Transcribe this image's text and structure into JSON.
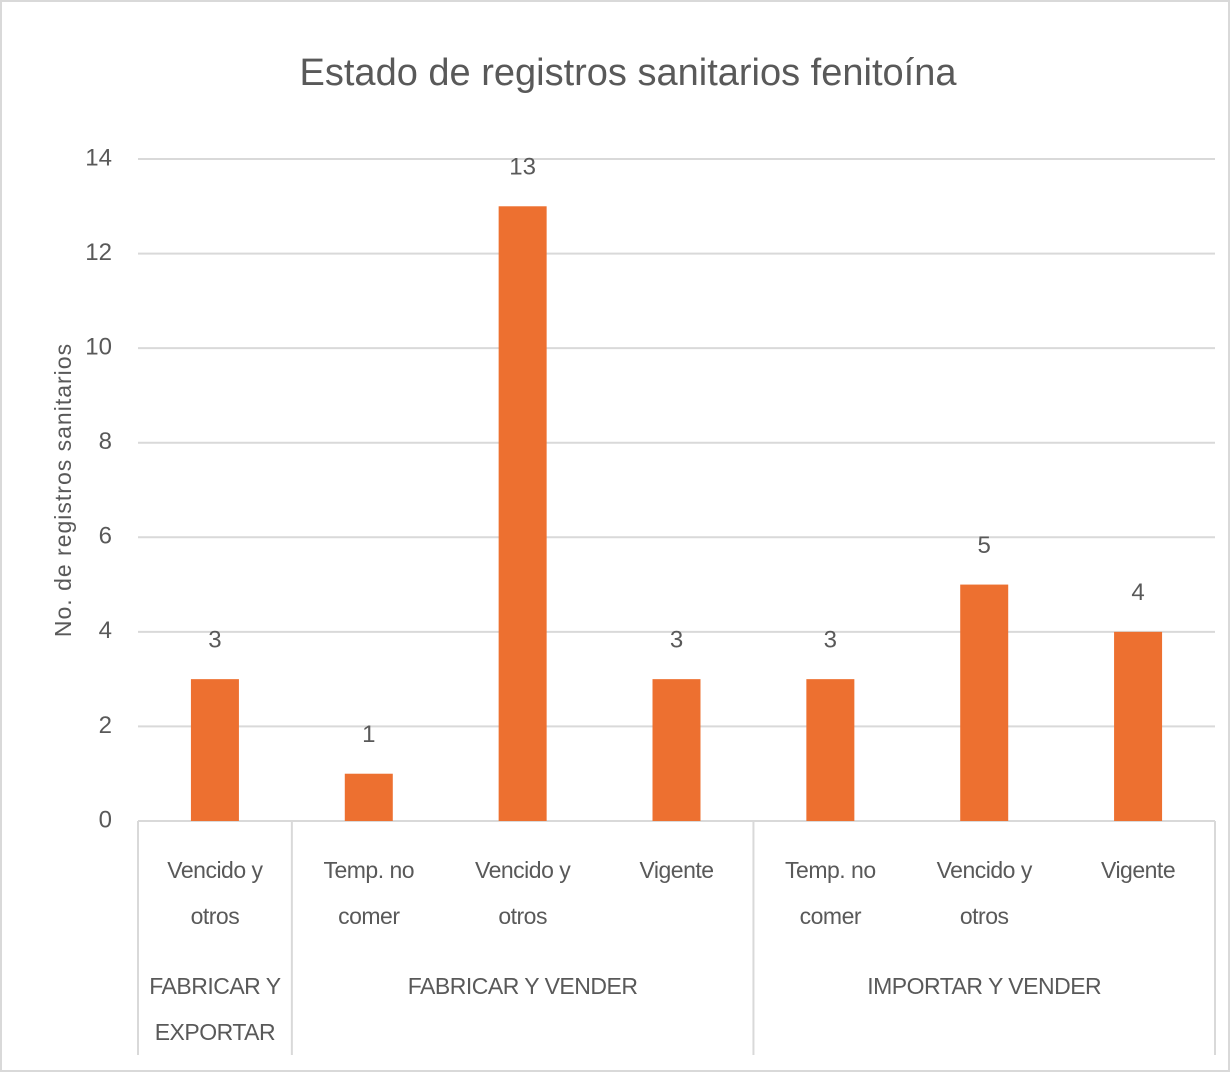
{
  "chart_data": {
    "type": "bar",
    "title": "Estado de registros sanitarios fenitoína",
    "y_label": "No. de registros sanitarios",
    "categories": [
      "Vencido y otros",
      "Temp. no comer",
      "Vencido y otros",
      "Vigente",
      "Temp. no comer",
      "Vencido y otros",
      "Vigente"
    ],
    "groups": [
      {
        "name": "FABRICAR Y EXPORTAR",
        "size": 1
      },
      {
        "name": "FABRICAR Y VENDER",
        "size": 3
      },
      {
        "name": "IMPORTAR Y VENDER",
        "size": 3
      }
    ],
    "values": [
      3,
      1,
      13,
      3,
      3,
      5,
      4
    ],
    "color": "#ed7030",
    "ylim": [
      0,
      14
    ],
    "yticks": [
      0,
      2,
      4,
      6,
      8,
      10,
      12,
      14
    ],
    "grid": true
  }
}
